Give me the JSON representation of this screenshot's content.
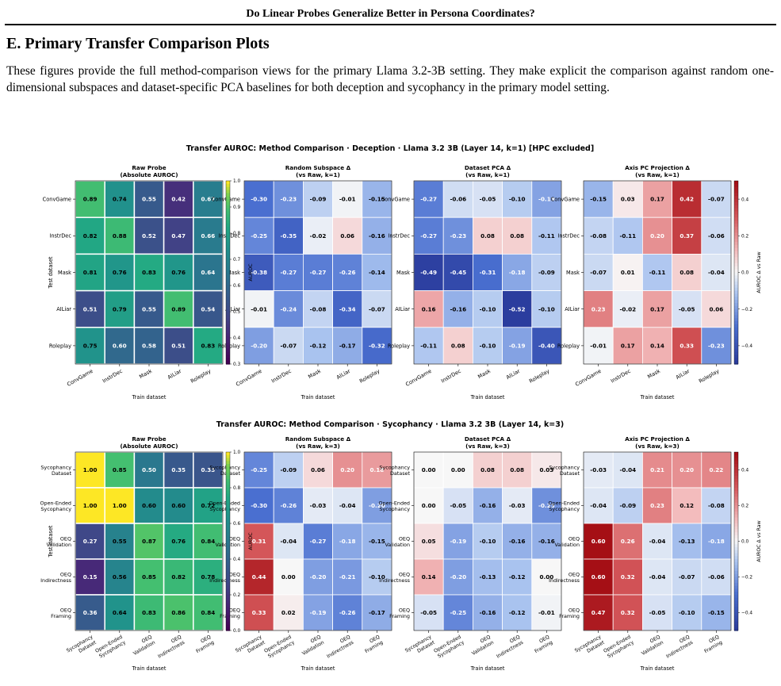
{
  "running_head": "Do Linear Probes Generalize Better in Persona Coordinates?",
  "section_title": "E. Primary Transfer Comparison Plots",
  "paragraph": "These figures provide the full method-comparison views for the primary Llama 3.2-3B setting. They make explicit the comparison against random one-dimensional subspaces and dataset-specific PCA baselines for both deception and sycophancy in the primary model setting.",
  "caption_fragment": "",
  "colors": {
    "viridis_low": "#440154",
    "viridis_high": "#fde725",
    "diverging_low": "#2b3d9e",
    "diverging_mid": "#f7f7f7",
    "diverging_high": "#a50f15"
  },
  "chart_data": [
    {
      "type": "heatmap",
      "title": "Transfer AUROC: Method Comparison  ·  Deception  ·  Llama 3.2 3B  (Layer 14, k=1)  [HPC excluded]",
      "xlabel": "Train dataset",
      "ylabel": "Test dataset",
      "rows": [
        "ConvGame",
        "InstrDec",
        "Mask",
        "AILiar",
        "Roleplay"
      ],
      "cols": [
        "ConvGame",
        "InstrDec",
        "Mask",
        "AILiar",
        "Roleplay"
      ],
      "panels": [
        {
          "title": "Raw Probe",
          "subtitle": "(Absolute AUROC)",
          "cmap": "viridis",
          "values": [
            [
              0.89,
              0.74,
              0.55,
              0.42,
              0.67
            ],
            [
              0.82,
              0.88,
              0.52,
              0.47,
              0.66
            ],
            [
              0.81,
              0.76,
              0.83,
              0.76,
              0.64
            ],
            [
              0.51,
              0.79,
              0.55,
              0.89,
              0.54
            ],
            [
              0.75,
              0.6,
              0.58,
              0.51,
              0.83
            ]
          ]
        },
        {
          "title": "Random Subspace Δ",
          "subtitle": "(vs Raw, k=1)",
          "cmap": "diverging",
          "values": [
            [
              -0.3,
              -0.23,
              -0.09,
              -0.01,
              -0.15
            ],
            [
              -0.25,
              -0.35,
              -0.02,
              0.06,
              -0.16
            ],
            [
              -0.38,
              -0.27,
              -0.27,
              -0.26,
              -0.14
            ],
            [
              -0.01,
              -0.24,
              -0.08,
              -0.34,
              -0.07
            ],
            [
              -0.2,
              -0.07,
              -0.12,
              -0.17,
              -0.32
            ]
          ]
        },
        {
          "title": "Dataset PCA Δ",
          "subtitle": "(vs Raw, k=1)",
          "cmap": "diverging",
          "values": [
            [
              -0.27,
              -0.06,
              -0.05,
              -0.1,
              -0.19
            ],
            [
              -0.27,
              -0.23,
              0.08,
              0.08,
              -0.11
            ],
            [
              -0.49,
              -0.45,
              -0.31,
              -0.18,
              -0.09
            ],
            [
              0.16,
              -0.16,
              -0.1,
              -0.52,
              -0.1
            ],
            [
              -0.11,
              0.08,
              -0.1,
              -0.19,
              -0.4
            ]
          ]
        },
        {
          "title": "Axis PC Projection Δ",
          "subtitle": "(vs Raw, k=1)",
          "cmap": "diverging",
          "values": [
            [
              -0.15,
              0.03,
              0.17,
              0.42,
              -0.07
            ],
            [
              -0.08,
              -0.11,
              0.2,
              0.37,
              -0.06
            ],
            [
              -0.07,
              0.01,
              -0.11,
              0.08,
              -0.04
            ],
            [
              0.23,
              -0.02,
              0.17,
              -0.05,
              0.06
            ],
            [
              -0.01,
              0.17,
              0.14,
              0.33,
              -0.23
            ]
          ]
        }
      ],
      "viridis_colorbar": {
        "label": "AUROC",
        "range": [
          0.3,
          1.0
        ],
        "ticks": [
          "1.0",
          "0.9",
          "0.8",
          "0.7",
          "0.6",
          "0.5",
          "0.4",
          "0.3"
        ]
      },
      "diverging_colorbar": {
        "label": "AUROC Δ vs Raw",
        "range": [
          -0.5,
          0.5
        ],
        "ticks": [
          "0.4",
          "0.2",
          "0.0",
          "−0.2",
          "−0.4"
        ]
      }
    },
    {
      "type": "heatmap",
      "title": "Transfer AUROC: Method Comparison  ·  Sycophancy  ·  Llama 3.2 3B  (Layer 14, k=3)",
      "xlabel": "Train dataset",
      "ylabel": "Test dataset",
      "rows": [
        [
          "Sycophancy",
          "Dataset"
        ],
        [
          "Open-Ended",
          "Sycophancy"
        ],
        [
          "OEQ",
          "Validation"
        ],
        [
          "OEQ",
          "Indirectness"
        ],
        [
          "OEQ",
          "Framing"
        ]
      ],
      "cols": [
        [
          "Sycophancy",
          "Dataset"
        ],
        [
          "Open-Ended",
          "Sycophancy"
        ],
        [
          "OEQ",
          "Validation"
        ],
        [
          "OEQ",
          "Indirectness"
        ],
        [
          "OEQ",
          "Framing"
        ]
      ],
      "panels": [
        {
          "title": "Raw Probe",
          "subtitle": "(Absolute AUROC)",
          "cmap": "viridis",
          "values": [
            [
              1.0,
              0.85,
              0.5,
              0.35,
              0.33
            ],
            [
              1.0,
              1.0,
              0.6,
              0.6,
              0.72
            ],
            [
              0.27,
              0.55,
              0.87,
              0.76,
              0.84
            ],
            [
              0.15,
              0.56,
              0.85,
              0.82,
              0.78
            ],
            [
              0.36,
              0.64,
              0.83,
              0.86,
              0.84
            ]
          ]
        },
        {
          "title": "Random Subspace Δ",
          "subtitle": "(vs Raw, k=3)",
          "cmap": "diverging",
          "values": [
            [
              -0.25,
              -0.09,
              0.06,
              0.2,
              0.18
            ],
            [
              -0.3,
              -0.26,
              -0.03,
              -0.04,
              -0.2
            ],
            [
              0.31,
              -0.04,
              -0.27,
              -0.18,
              -0.15
            ],
            [
              0.44,
              0.0,
              -0.2,
              -0.21,
              -0.1
            ],
            [
              0.33,
              0.02,
              -0.19,
              -0.26,
              -0.17
            ]
          ]
        },
        {
          "title": "Dataset PCA Δ",
          "subtitle": "(vs Raw, k=3)",
          "cmap": "diverging",
          "values": [
            [
              0.0,
              0.0,
              0.08,
              0.08,
              0.03
            ],
            [
              0.0,
              -0.05,
              -0.16,
              -0.03,
              -0.23
            ],
            [
              0.05,
              -0.19,
              -0.1,
              -0.16,
              -0.16
            ],
            [
              0.14,
              -0.2,
              -0.13,
              -0.12,
              0.0
            ],
            [
              -0.05,
              -0.25,
              -0.16,
              -0.12,
              -0.01
            ]
          ]
        },
        {
          "title": "Axis PC Projection Δ",
          "subtitle": "(vs Raw, k=3)",
          "cmap": "diverging",
          "values": [
            [
              -0.03,
              -0.04,
              0.21,
              0.2,
              0.22
            ],
            [
              -0.04,
              -0.09,
              0.23,
              0.12,
              -0.08
            ],
            [
              0.6,
              0.26,
              -0.04,
              -0.13,
              -0.18
            ],
            [
              0.6,
              0.32,
              -0.04,
              -0.07,
              -0.06
            ],
            [
              0.47,
              0.32,
              -0.05,
              -0.1,
              -0.15
            ]
          ]
        }
      ],
      "viridis_colorbar": {
        "label": "AUROC",
        "range": [
          0.0,
          1.0
        ],
        "ticks": [
          "1.0",
          "0.8",
          "0.6",
          "0.4",
          "0.2",
          "0.0"
        ]
      },
      "diverging_colorbar": {
        "label": "AUROC Δ vs Raw",
        "range": [
          -0.5,
          0.5
        ],
        "ticks": [
          "0.4",
          "0.2",
          "0.0",
          "−0.2",
          "−0.4"
        ]
      }
    }
  ]
}
